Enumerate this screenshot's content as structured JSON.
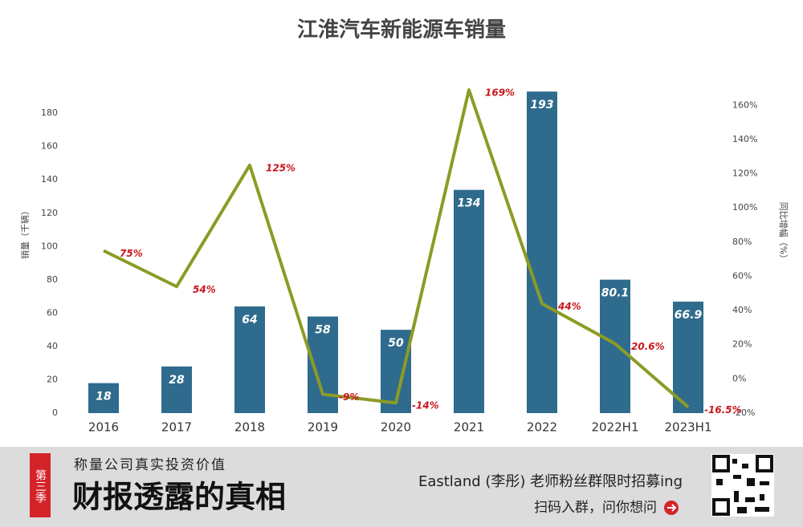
{
  "chart_data": {
    "type": "combo",
    "title": "江淮汽车新能源车销量",
    "y_label": "销量（千辆）",
    "y2_label": "同比增幅（%）",
    "categories": [
      "2016",
      "2017",
      "2018",
      "2019",
      "2020",
      "2021",
      "2022",
      "2022H1",
      "2023H1"
    ],
    "series": [
      {
        "name": "销量",
        "type": "bar",
        "axis": "y",
        "color": "#2f6b8d",
        "values": [
          18,
          28,
          64,
          58,
          50,
          134,
          193,
          80.1,
          66.9
        ]
      },
      {
        "name": "同比增幅",
        "type": "line",
        "axis": "y2",
        "color": "#8c9b26",
        "values": [
          75,
          54,
          125,
          -9,
          -14,
          169,
          44,
          20.6,
          -16.5
        ],
        "value_labels": [
          "75%",
          "54%",
          "125%",
          "-9%",
          "-14%",
          "169%",
          "44%",
          "20.6%",
          "-16.5%"
        ]
      }
    ],
    "ylim": [
      0,
      195
    ],
    "yticks": [
      0,
      20,
      40,
      60,
      80,
      100,
      120,
      140,
      160,
      180
    ],
    "y2lim": [
      -20,
      170
    ],
    "y2ticks": [
      {
        "value": -20,
        "label": "-20%"
      },
      {
        "value": 0,
        "label": "0%"
      },
      {
        "value": 20,
        "label": "20%"
      },
      {
        "value": 40,
        "label": "40%"
      },
      {
        "value": 60,
        "label": "60%"
      },
      {
        "value": 80,
        "label": "80%"
      },
      {
        "value": 100,
        "label": "100%"
      },
      {
        "value": 120,
        "label": "120%"
      },
      {
        "value": 140,
        "label": "140%"
      },
      {
        "value": 160,
        "label": "160%"
      }
    ]
  },
  "footer": {
    "tag": "第三季",
    "subtitle": "称量公司真实投资价值",
    "headline": "财报透露的真相",
    "promo": "Eastland (李彤) 老师粉丝群限时招募ing",
    "cta": "扫码入群，问你想问"
  }
}
